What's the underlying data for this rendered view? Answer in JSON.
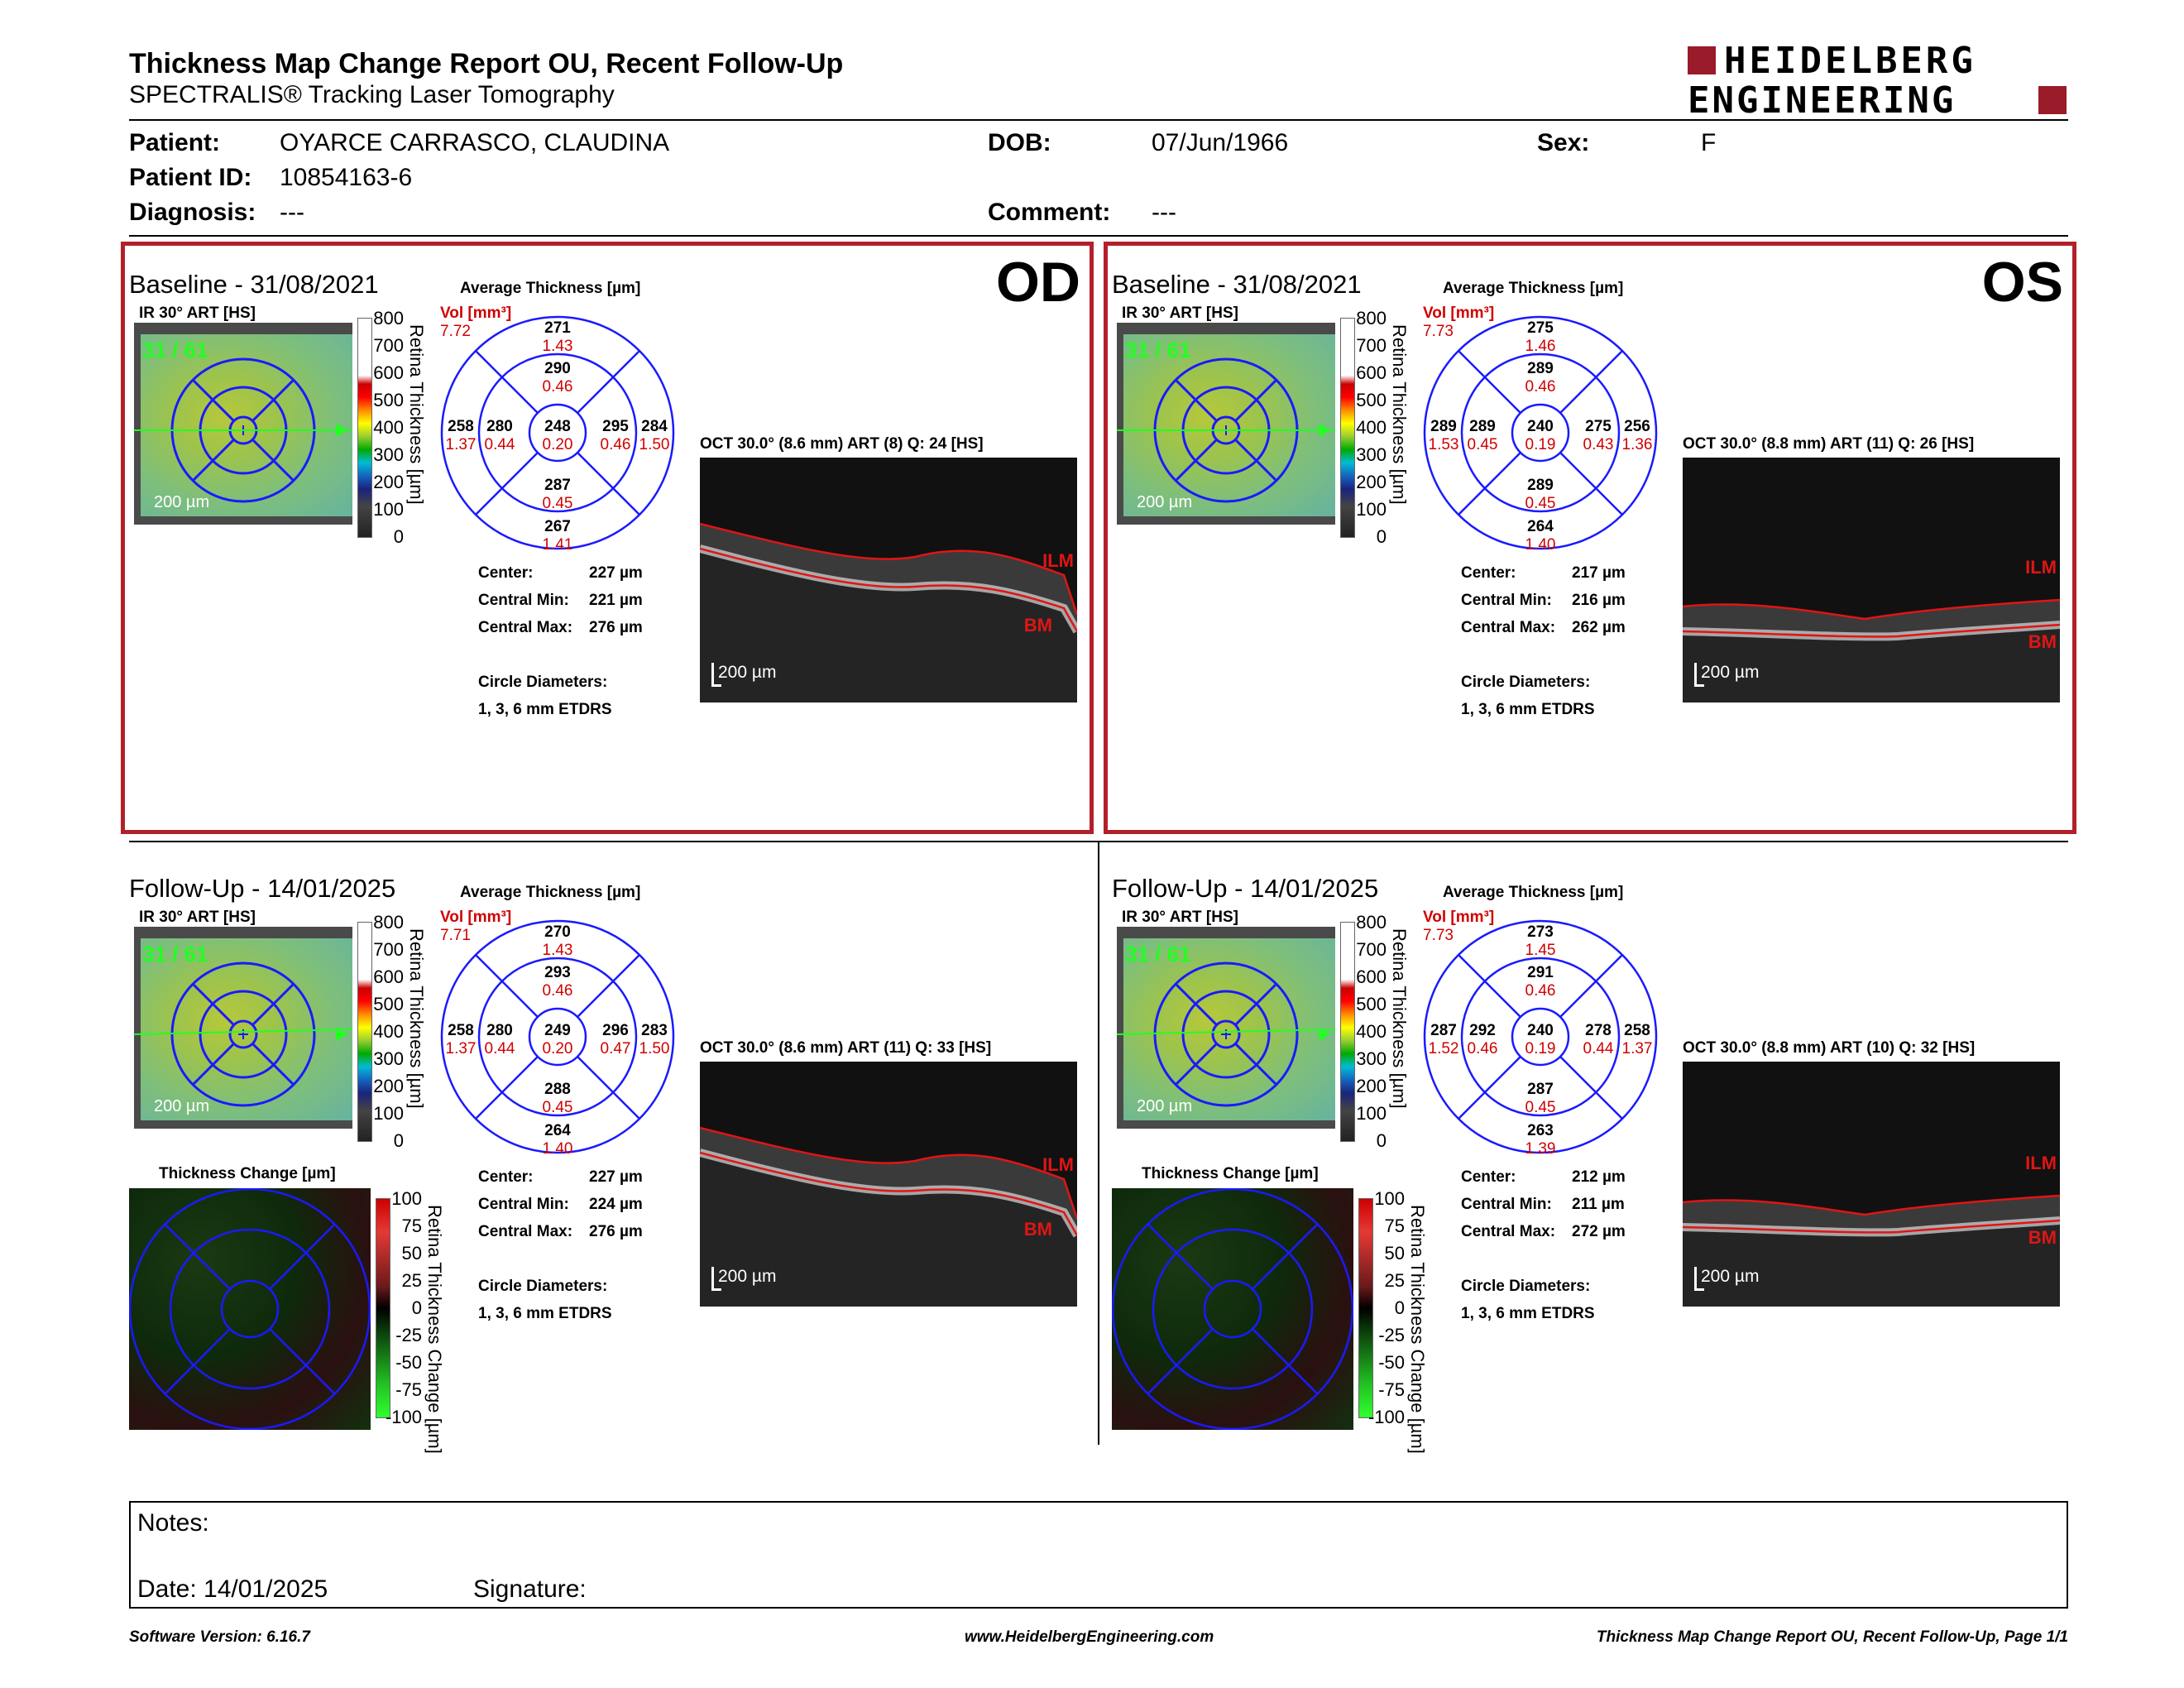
{
  "header": {
    "title": "Thickness Map Change Report OU, Recent Follow-Up",
    "subtitle": "SPECTRALIS® Tracking Laser Tomography",
    "logo_line1": "HEIDELBERG",
    "logo_line2": "ENGINEERING"
  },
  "patient": {
    "patient_label": "Patient:",
    "patient_value": "OYARCE CARRASCO, CLAUDINA",
    "id_label": "Patient ID:",
    "id_value": "10854163-6",
    "diagnosis_label": "Diagnosis:",
    "diagnosis_value": "---",
    "dob_label": "DOB:",
    "dob_value": "07/Jun/1966",
    "comment_label": "Comment:",
    "comment_value": "---",
    "sex_label": "Sex:",
    "sex_value": "F"
  },
  "common": {
    "ir_label": "IR 30° ART [HS]",
    "avg_title": "Average Thickness [µm]",
    "vol_label": "Vol [mm³]",
    "fundus_scale": "200 µm",
    "fundus_count": "31 / 61",
    "colorbar_ticks": [
      "800",
      "700",
      "600",
      "500",
      "400",
      "300",
      "200",
      "100",
      "0"
    ],
    "colorbar_label": "Retina Thickness [µm]",
    "change_title": "Thickness Change [µm]",
    "change_ticks": [
      "100",
      "75",
      "50",
      "25",
      "0",
      "-25",
      "-50",
      "-75",
      "-100"
    ],
    "change_label": "Retina Thickness Change [µm]",
    "center_label": "Center:",
    "cmin_label": "Central Min:",
    "cmax_label": "Central Max:",
    "circle_label": "Circle Diameters:",
    "circle_value": "1, 3, 6 mm ETDRS",
    "oct_scale": "200 µm",
    "ilm": "ILM",
    "bm": "BM"
  },
  "panels": {
    "od_base": {
      "title": "Baseline - 31/08/2021",
      "eye": "OD",
      "vol": "7.72",
      "grid": {
        "outer_top": "271",
        "outer_top_v": "1.43",
        "inner_top": "290",
        "inner_top_v": "0.46",
        "outer_left": "258",
        "outer_left_v": "1.37",
        "inner_left": "280",
        "inner_left_v": "0.44",
        "center": "248",
        "center_v": "0.20",
        "inner_right": "295",
        "inner_right_v": "0.46",
        "outer_right": "284",
        "outer_right_v": "1.50",
        "inner_bottom": "287",
        "inner_bottom_v": "0.45",
        "outer_bottom": "267",
        "outer_bottom_v": "1.41"
      },
      "center_val": "227 µm",
      "cmin_val": "221 µm",
      "cmax_val": "276 µm",
      "oct_title": "OCT 30.0° (8.6 mm) ART (8) Q: 24 [HS]"
    },
    "os_base": {
      "title": "Baseline - 31/08/2021",
      "eye": "OS",
      "vol": "7.73",
      "grid": {
        "outer_top": "275",
        "outer_top_v": "1.46",
        "inner_top": "289",
        "inner_top_v": "0.46",
        "outer_left": "289",
        "outer_left_v": "1.53",
        "inner_left": "289",
        "inner_left_v": "0.45",
        "center": "240",
        "center_v": "0.19",
        "inner_right": "275",
        "inner_right_v": "0.43",
        "outer_right": "256",
        "outer_right_v": "1.36",
        "inner_bottom": "289",
        "inner_bottom_v": "0.45",
        "outer_bottom": "264",
        "outer_bottom_v": "1.40"
      },
      "center_val": "217 µm",
      "cmin_val": "216 µm",
      "cmax_val": "262 µm",
      "oct_title": "OCT 30.0° (8.8 mm) ART (11) Q: 26 [HS]"
    },
    "od_follow": {
      "title": "Follow-Up - 14/01/2025",
      "vol": "7.71",
      "grid": {
        "outer_top": "270",
        "outer_top_v": "1.43",
        "inner_top": "293",
        "inner_top_v": "0.46",
        "outer_left": "258",
        "outer_left_v": "1.37",
        "inner_left": "280",
        "inner_left_v": "0.44",
        "center": "249",
        "center_v": "0.20",
        "inner_right": "296",
        "inner_right_v": "0.47",
        "outer_right": "283",
        "outer_right_v": "1.50",
        "inner_bottom": "288",
        "inner_bottom_v": "0.45",
        "outer_bottom": "264",
        "outer_bottom_v": "1.40"
      },
      "center_val": "227 µm",
      "cmin_val": "224 µm",
      "cmax_val": "276 µm",
      "oct_title": "OCT 30.0° (8.6 mm) ART (11) Q: 33 [HS]"
    },
    "os_follow": {
      "title": "Follow-Up - 14/01/2025",
      "vol": "7.73",
      "grid": {
        "outer_top": "273",
        "outer_top_v": "1.45",
        "inner_top": "291",
        "inner_top_v": "0.46",
        "outer_left": "287",
        "outer_left_v": "1.52",
        "inner_left": "292",
        "inner_left_v": "0.46",
        "center": "240",
        "center_v": "0.19",
        "inner_right": "278",
        "inner_right_v": "0.44",
        "outer_right": "258",
        "outer_right_v": "1.37",
        "inner_bottom": "287",
        "inner_bottom_v": "0.45",
        "outer_bottom": "263",
        "outer_bottom_v": "1.39"
      },
      "center_val": "212 µm",
      "cmin_val": "211 µm",
      "cmax_val": "272 µm",
      "oct_title": "OCT 30.0° (8.8 mm) ART (10) Q: 32 [HS]"
    }
  },
  "notes": {
    "notes_label": "Notes:",
    "date_label": "Date: 14/01/2025",
    "signature_label": "Signature:"
  },
  "footer": {
    "software": "Software Version: 6.16.7",
    "website": "www.HeidelbergEngineering.com",
    "page": "Thickness Map Change Report OU, Recent Follow-Up, Page 1/1"
  },
  "colors": {
    "accent_red": "#b3202a",
    "grid_blue": "#1a1aff",
    "volume_red": "#d00000",
    "fundus_green": "#22ff22"
  }
}
